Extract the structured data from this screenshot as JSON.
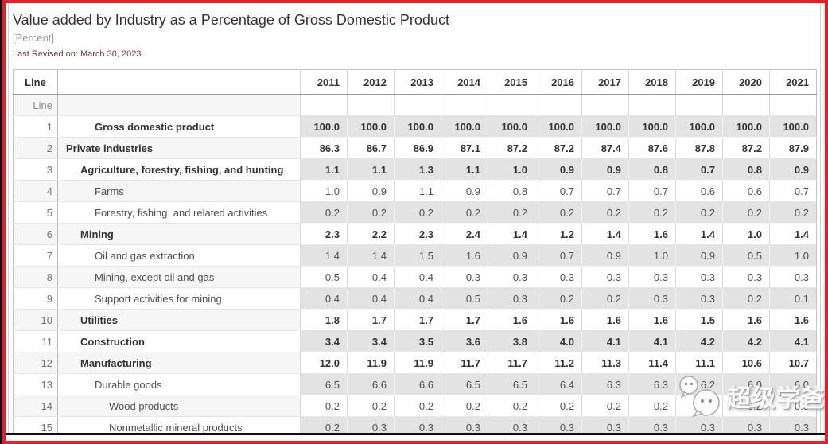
{
  "colors": {
    "accent_red": "#ed1c24",
    "row_shade": "#e3e3e3",
    "row_shade_light": "#f6f6f6",
    "revised_text": "#6e3b32",
    "muted_text": "#9b9b9b"
  },
  "header": {
    "title": "Value added by Industry as a Percentage of Gross Domestic Product",
    "unit": "[Percent]",
    "last_revised": "Last Revised on: March 30, 2023"
  },
  "table": {
    "line_header": "Line",
    "line_subheader": "Line",
    "years": [
      "2011",
      "2012",
      "2013",
      "2014",
      "2015",
      "2016",
      "2017",
      "2018",
      "2019",
      "2020",
      "2021"
    ],
    "rows": [
      {
        "line": "1",
        "label": "Gross domestic product",
        "indent": 3,
        "bold": true,
        "values": [
          "100.0",
          "100.0",
          "100.0",
          "100.0",
          "100.0",
          "100.0",
          "100.0",
          "100.0",
          "100.0",
          "100.0",
          "100.0"
        ]
      },
      {
        "line": "2",
        "label": "Private industries",
        "indent": 1,
        "bold": true,
        "values": [
          "86.3",
          "86.7",
          "86.9",
          "87.1",
          "87.2",
          "87.2",
          "87.4",
          "87.6",
          "87.8",
          "87.2",
          "87.9"
        ]
      },
      {
        "line": "3",
        "label": "Agriculture, forestry, fishing, and hunting",
        "indent": 2,
        "bold": true,
        "values": [
          "1.1",
          "1.1",
          "1.3",
          "1.1",
          "1.0",
          "0.9",
          "0.9",
          "0.8",
          "0.7",
          "0.8",
          "0.9"
        ]
      },
      {
        "line": "4",
        "label": "Farms",
        "indent": 3,
        "bold": false,
        "values": [
          "1.0",
          "0.9",
          "1.1",
          "0.9",
          "0.8",
          "0.7",
          "0.7",
          "0.7",
          "0.6",
          "0.6",
          "0.7"
        ]
      },
      {
        "line": "5",
        "label": "Forestry, fishing, and related activities",
        "indent": 3,
        "bold": false,
        "values": [
          "0.2",
          "0.2",
          "0.2",
          "0.2",
          "0.2",
          "0.2",
          "0.2",
          "0.2",
          "0.2",
          "0.2",
          "0.2"
        ]
      },
      {
        "line": "6",
        "label": "Mining",
        "indent": 2,
        "bold": true,
        "values": [
          "2.3",
          "2.2",
          "2.3",
          "2.4",
          "1.4",
          "1.2",
          "1.4",
          "1.6",
          "1.4",
          "1.0",
          "1.4"
        ]
      },
      {
        "line": "7",
        "label": "Oil and gas extraction",
        "indent": 3,
        "bold": false,
        "values": [
          "1.4",
          "1.4",
          "1.5",
          "1.6",
          "0.9",
          "0.7",
          "0.9",
          "1.0",
          "0.9",
          "0.5",
          "1.0"
        ]
      },
      {
        "line": "8",
        "label": "Mining, except oil and gas",
        "indent": 3,
        "bold": false,
        "values": [
          "0.5",
          "0.4",
          "0.4",
          "0.3",
          "0.3",
          "0.3",
          "0.3",
          "0.3",
          "0.3",
          "0.3",
          "0.3"
        ]
      },
      {
        "line": "9",
        "label": "Support activities for mining",
        "indent": 3,
        "bold": false,
        "values": [
          "0.4",
          "0.4",
          "0.4",
          "0.5",
          "0.3",
          "0.2",
          "0.2",
          "0.3",
          "0.3",
          "0.2",
          "0.1"
        ]
      },
      {
        "line": "10",
        "label": "Utilities",
        "indent": 2,
        "bold": true,
        "values": [
          "1.8",
          "1.7",
          "1.7",
          "1.7",
          "1.6",
          "1.6",
          "1.6",
          "1.6",
          "1.5",
          "1.6",
          "1.6"
        ]
      },
      {
        "line": "11",
        "label": "Construction",
        "indent": 2,
        "bold": true,
        "values": [
          "3.4",
          "3.4",
          "3.5",
          "3.6",
          "3.8",
          "4.0",
          "4.1",
          "4.1",
          "4.2",
          "4.2",
          "4.1"
        ]
      },
      {
        "line": "12",
        "label": "Manufacturing",
        "indent": 2,
        "bold": true,
        "values": [
          "12.0",
          "11.9",
          "11.9",
          "11.7",
          "11.7",
          "11.2",
          "11.3",
          "11.4",
          "11.1",
          "10.6",
          "10.7"
        ]
      },
      {
        "line": "13",
        "label": "Durable goods",
        "indent": 3,
        "bold": false,
        "values": [
          "6.5",
          "6.6",
          "6.6",
          "6.5",
          "6.5",
          "6.4",
          "6.3",
          "6.3",
          "6.2",
          "6.0",
          "6.0"
        ]
      },
      {
        "line": "14",
        "label": "Wood products",
        "indent": 4,
        "bold": false,
        "values": [
          "0.2",
          "0.2",
          "0.2",
          "0.2",
          "0.2",
          "0.2",
          "0.2",
          "0.2",
          "0.2",
          "0.2",
          "0.3"
        ]
      },
      {
        "line": "15",
        "label": "Nonmetallic mineral products",
        "indent": 4,
        "bold": false,
        "values": [
          "0.2",
          "0.3",
          "0.3",
          "0.3",
          "0.3",
          "0.3",
          "0.3",
          "0.3",
          "0.3",
          "0.3",
          "0.3"
        ]
      }
    ]
  },
  "watermark": {
    "text": "超级学爸",
    "icon": "wechat-icon"
  }
}
